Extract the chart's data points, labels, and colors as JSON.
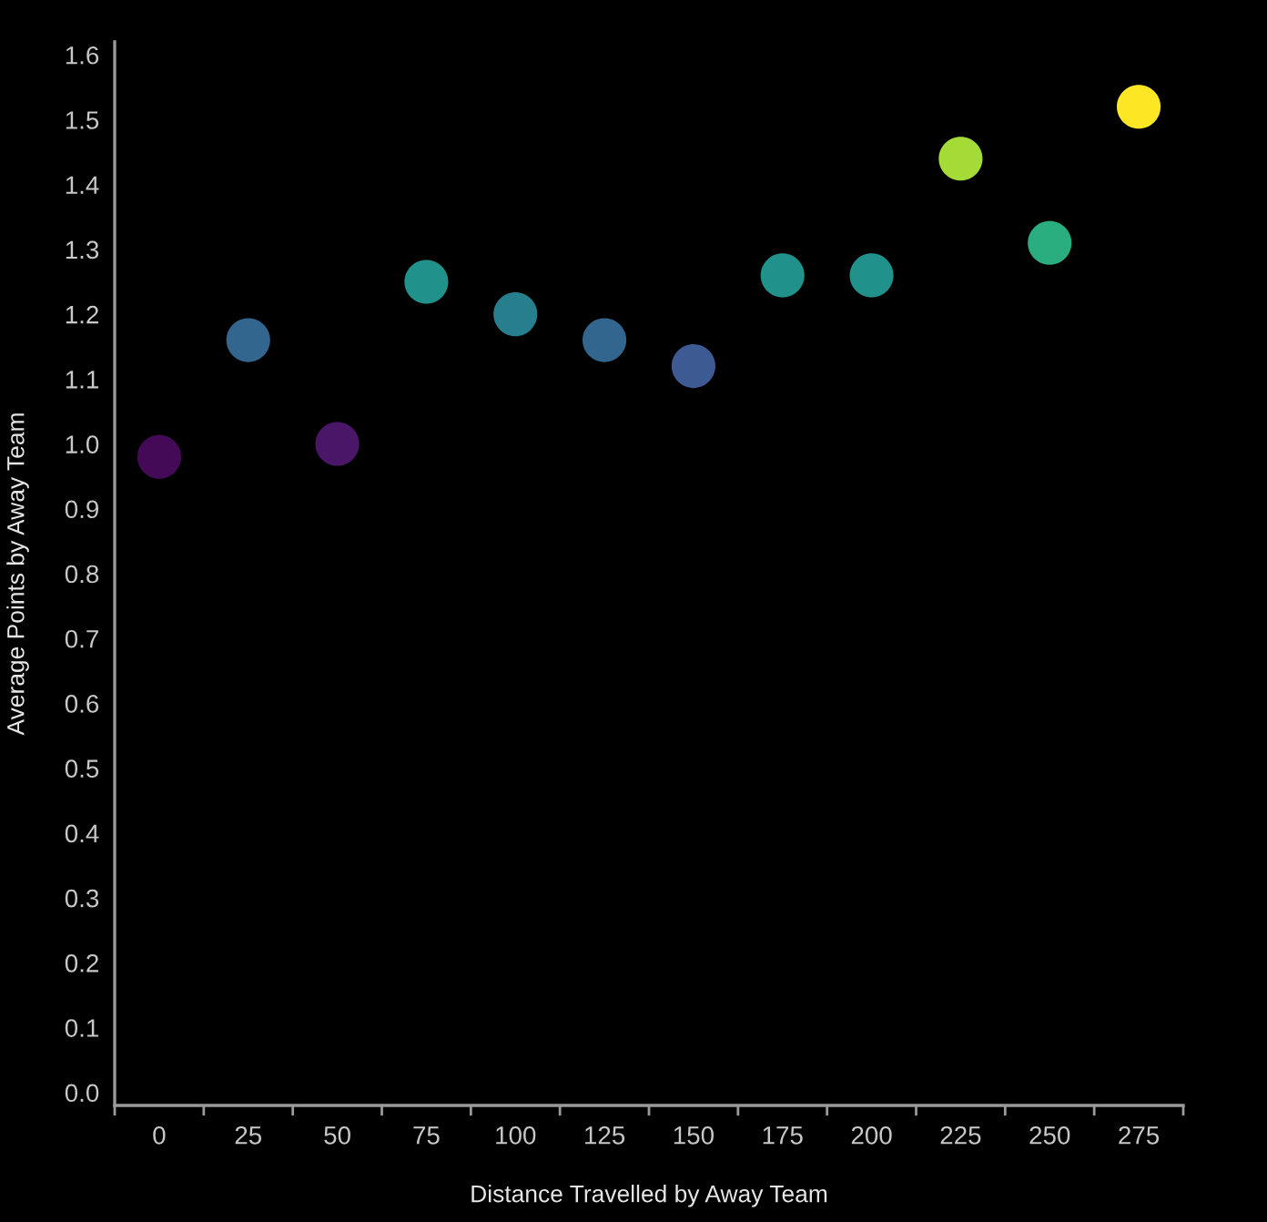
{
  "chart_data": {
    "type": "scatter",
    "xlabel": "Distance Travelled by Away Team",
    "ylabel": "Average Points by Away Team",
    "categories": [
      "0",
      "25",
      "50",
      "75",
      "100",
      "125",
      "150",
      "175",
      "200",
      "225",
      "250",
      "275"
    ],
    "values": [
      0.98,
      1.16,
      1.0,
      1.25,
      1.2,
      1.16,
      1.12,
      1.26,
      1.26,
      1.44,
      1.31,
      1.52
    ],
    "colors": [
      "#440a57",
      "#33668f",
      "#4a1668",
      "#21918c",
      "#277f8e",
      "#33668f",
      "#3e5a92",
      "#21918c",
      "#21918c",
      "#a5db36",
      "#2aae80",
      "#fde725"
    ],
    "ylim": [
      -0.02,
      1.62
    ],
    "yticks": [
      {
        "value": 0,
        "label": "0.0"
      },
      0.1,
      0.2,
      0.3,
      0.4,
      0.5,
      0.6,
      0.7,
      0.8,
      0.9,
      {
        "value": 1,
        "label": "1.0"
      },
      1.1,
      1.2,
      1.3,
      1.4,
      1.5,
      1.6
    ],
    "marker": "circle"
  }
}
